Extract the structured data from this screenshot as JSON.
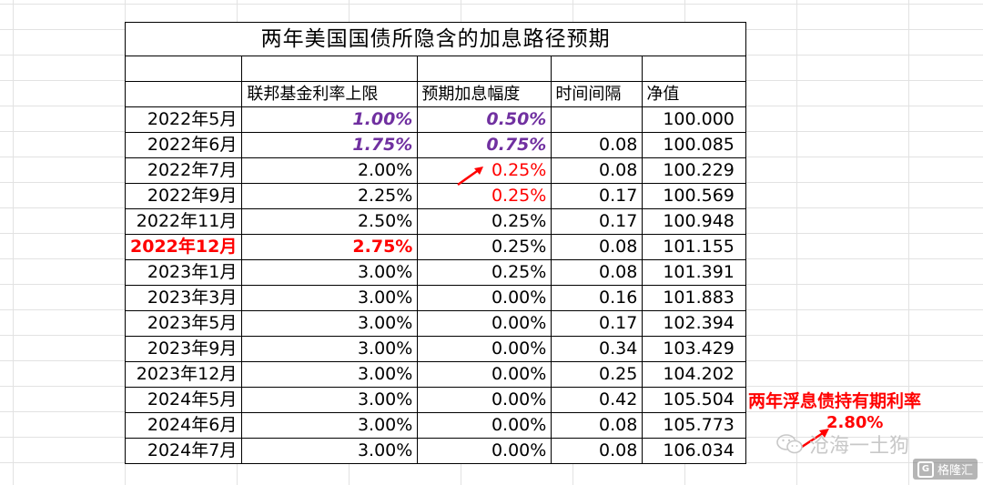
{
  "title": "两年美国国债所隐含的加息路径预期",
  "headers": {
    "col1": "",
    "col2": "联邦基金利率上限",
    "col3": "预期加息幅度",
    "col4": "时间间隔",
    "col5": "净值"
  },
  "rows": [
    {
      "date": "2022年5月",
      "rate": "1.00%",
      "hike": "0.50%",
      "interval": "",
      "nav": "100.000"
    },
    {
      "date": "2022年6月",
      "rate": "1.75%",
      "hike": "0.75%",
      "interval": "0.08",
      "nav": "100.085"
    },
    {
      "date": "2022年7月",
      "rate": "2.00%",
      "hike": "0.25%",
      "interval": "0.08",
      "nav": "100.229"
    },
    {
      "date": "2022年9月",
      "rate": "2.25%",
      "hike": "0.25%",
      "interval": "0.17",
      "nav": "100.569"
    },
    {
      "date": "2022年11月",
      "rate": "2.50%",
      "hike": "0.25%",
      "interval": "0.17",
      "nav": "100.948"
    },
    {
      "date": "2022年12月",
      "rate": "2.75%",
      "hike": "0.25%",
      "interval": "0.08",
      "nav": "101.155"
    },
    {
      "date": "2023年1月",
      "rate": "3.00%",
      "hike": "0.25%",
      "interval": "0.08",
      "nav": "101.391"
    },
    {
      "date": "2023年3月",
      "rate": "3.00%",
      "hike": "0.00%",
      "interval": "0.16",
      "nav": "101.883"
    },
    {
      "date": "2023年5月",
      "rate": "3.00%",
      "hike": "0.00%",
      "interval": "0.17",
      "nav": "102.394"
    },
    {
      "date": "2023年9月",
      "rate": "3.00%",
      "hike": "0.00%",
      "interval": "0.34",
      "nav": "103.429"
    },
    {
      "date": "2023年12月",
      "rate": "3.00%",
      "hike": "0.00%",
      "interval": "0.25",
      "nav": "104.202"
    },
    {
      "date": "2024年5月",
      "rate": "3.00%",
      "hike": "0.00%",
      "interval": "0.42",
      "nav": "105.504"
    },
    {
      "date": "2024年6月",
      "rate": "3.00%",
      "hike": "0.00%",
      "interval": "0.08",
      "nav": "105.773"
    },
    {
      "date": "2024年7月",
      "rate": "3.00%",
      "hike": "0.00%",
      "interval": "0.08",
      "nav": "106.034"
    }
  ],
  "annotation": {
    "label": "两年浮息债持有期利率",
    "value": "2.80%"
  },
  "watermark": {
    "text": "沧海一土狗",
    "icon": "wechat-icon"
  },
  "brand": {
    "text": "格隆汇",
    "logo": "G"
  },
  "colors": {
    "highlight_purple": "#7030a0",
    "red": "#ff0000",
    "grid": "#e2e2e2"
  }
}
